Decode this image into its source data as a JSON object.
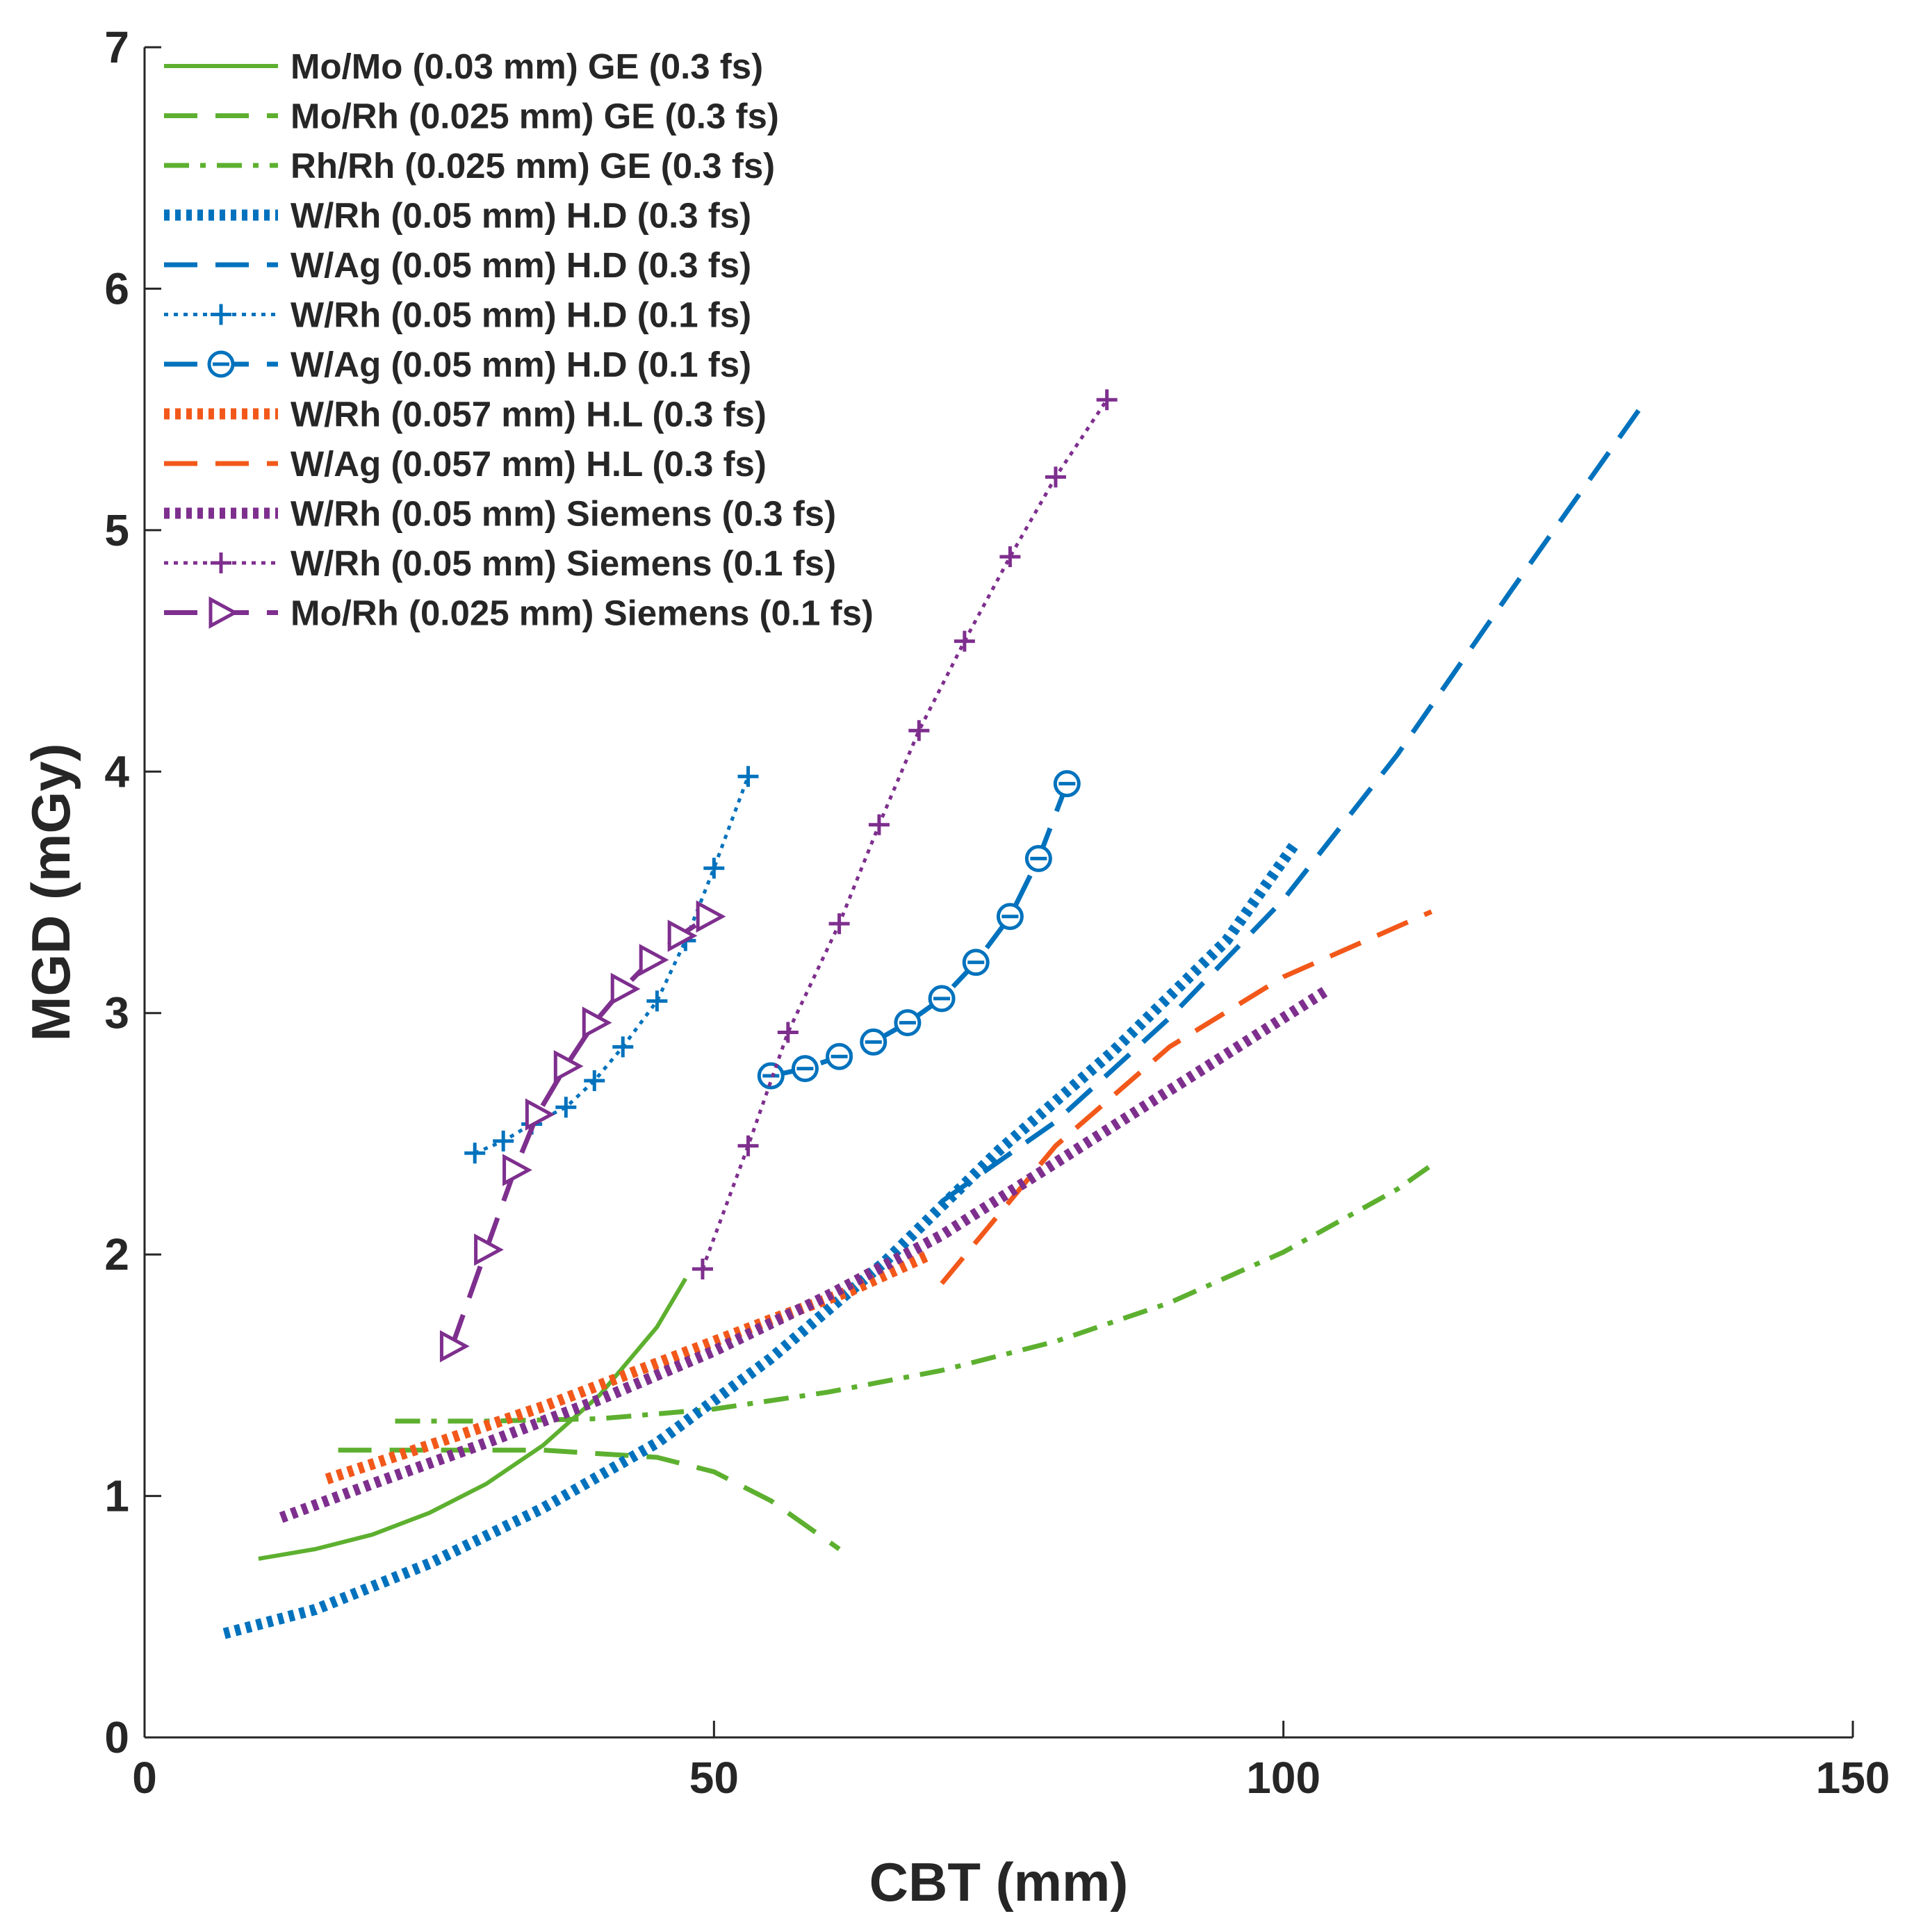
{
  "chart_data": {
    "type": "line",
    "title": "",
    "xlabel": "CBT (mm)",
    "ylabel": "MGD (mGy)",
    "xlim": [
      0,
      150
    ],
    "ylim": [
      0,
      7
    ],
    "xticks": [
      0,
      50,
      100,
      150
    ],
    "yticks": [
      0,
      1,
      2,
      3,
      4,
      5,
      6,
      7
    ],
    "grid": false,
    "legend_position": "top-left",
    "series": [
      {
        "name": "Mo/Mo (0.03 mm) GE (0.3 fs)",
        "color": "#5DB02F",
        "style": "solid",
        "marker": "none",
        "x": [
          10,
          15,
          20,
          25,
          30,
          35,
          40,
          45,
          47.5
        ],
        "y": [
          0.74,
          0.78,
          0.84,
          0.93,
          1.05,
          1.21,
          1.42,
          1.7,
          1.9
        ]
      },
      {
        "name": "Mo/Rh (0.025 mm) GE (0.3 fs)",
        "color": "#5DB02F",
        "style": "dashed",
        "marker": "none",
        "x": [
          17,
          25,
          35,
          45,
          50,
          55,
          61
        ],
        "y": [
          1.19,
          1.19,
          1.19,
          1.16,
          1.1,
          0.98,
          0.78
        ]
      },
      {
        "name": "Rh/Rh (0.025 mm) GE (0.3 fs)",
        "color": "#5DB02F",
        "style": "dashdot",
        "marker": "none",
        "x": [
          22,
          30,
          40,
          50,
          60,
          70,
          80,
          90,
          100,
          110,
          113
        ],
        "y": [
          1.31,
          1.31,
          1.32,
          1.36,
          1.43,
          1.52,
          1.64,
          1.8,
          2.01,
          2.27,
          2.37
        ]
      },
      {
        "name": "W/Rh (0.05 mm) H.D (0.3 fs)",
        "color": "#0072BD",
        "style": "dotted-thick",
        "marker": "none",
        "x": [
          7,
          15,
          25,
          35,
          45,
          55,
          65,
          75,
          85,
          95,
          101
        ],
        "y": [
          0.43,
          0.53,
          0.72,
          0.95,
          1.22,
          1.57,
          1.97,
          2.43,
          2.84,
          3.3,
          3.7
        ]
      },
      {
        "name": "W/Ag (0.05 mm) H.D (0.3 fs)",
        "color": "#0072BD",
        "style": "dashed",
        "marker": "none",
        "x": [
          70,
          80,
          90,
          100,
          110,
          120,
          132
        ],
        "y": [
          2.22,
          2.55,
          2.98,
          3.47,
          4.07,
          4.75,
          5.55
        ]
      },
      {
        "name": "W/Rh (0.05 mm) H.D (0.1 fs)",
        "color": "#0072BD",
        "style": "dotted",
        "marker": "plus",
        "x": [
          29,
          31.5,
          34,
          37,
          39.5,
          42,
          45,
          47.5,
          50,
          53
        ],
        "y": [
          2.42,
          2.47,
          2.54,
          2.61,
          2.72,
          2.86,
          3.05,
          3.3,
          3.6,
          3.98
        ]
      },
      {
        "name": "W/Ag (0.05 mm) H.D (0.1 fs)",
        "color": "#0072BD",
        "style": "dashed",
        "marker": "circle",
        "x": [
          55,
          58,
          61,
          64,
          67,
          70,
          73,
          76,
          78.5,
          81
        ],
        "y": [
          2.74,
          2.77,
          2.82,
          2.88,
          2.96,
          3.06,
          3.21,
          3.4,
          3.64,
          3.95
        ]
      },
      {
        "name": "W/Rh (0.057 mm) H.L (0.3 fs)",
        "color": "#F2581A",
        "style": "dotted-thick",
        "marker": "none",
        "x": [
          16,
          25,
          35,
          45,
          55,
          62,
          69
        ],
        "y": [
          1.07,
          1.21,
          1.37,
          1.55,
          1.73,
          1.85,
          2.0
        ]
      },
      {
        "name": "W/Ag (0.057 mm) H.L (0.3 fs)",
        "color": "#F2581A",
        "style": "dashed",
        "marker": "none",
        "x": [
          70,
          80,
          90,
          100,
          113
        ],
        "y": [
          1.88,
          2.45,
          2.86,
          3.15,
          3.42
        ]
      },
      {
        "name": "W/Rh (0.05 mm) Siemens (0.3 fs)",
        "color": "#7E2F8E",
        "style": "dotted-thick",
        "marker": "none",
        "x": [
          12,
          20,
          30,
          40,
          50,
          60,
          70,
          80,
          90,
          100,
          104
        ],
        "y": [
          0.91,
          1.05,
          1.22,
          1.4,
          1.6,
          1.83,
          2.08,
          2.38,
          2.68,
          2.98,
          3.1
        ]
      },
      {
        "name": "W/Rh (0.05 mm) Siemens (0.1 fs)",
        "color": "#7E2F8E",
        "style": "dotted",
        "marker": "plus",
        "x": [
          49,
          53,
          56.5,
          61,
          64.5,
          68,
          72,
          76,
          80,
          84.5
        ],
        "y": [
          1.94,
          2.45,
          2.92,
          3.37,
          3.78,
          4.17,
          4.54,
          4.89,
          5.22,
          5.54
        ]
      },
      {
        "name": "Mo/Rh (0.025 mm) Siemens (0.1 fs)",
        "color": "#7E2F8E",
        "style": "dashed",
        "marker": "triangle-right",
        "x": [
          27,
          30,
          32.5,
          34.5,
          37,
          39.5,
          42,
          44.5,
          47,
          49.5
        ],
        "y": [
          1.62,
          2.02,
          2.35,
          2.58,
          2.78,
          2.96,
          3.1,
          3.22,
          3.32,
          3.4
        ]
      }
    ]
  }
}
